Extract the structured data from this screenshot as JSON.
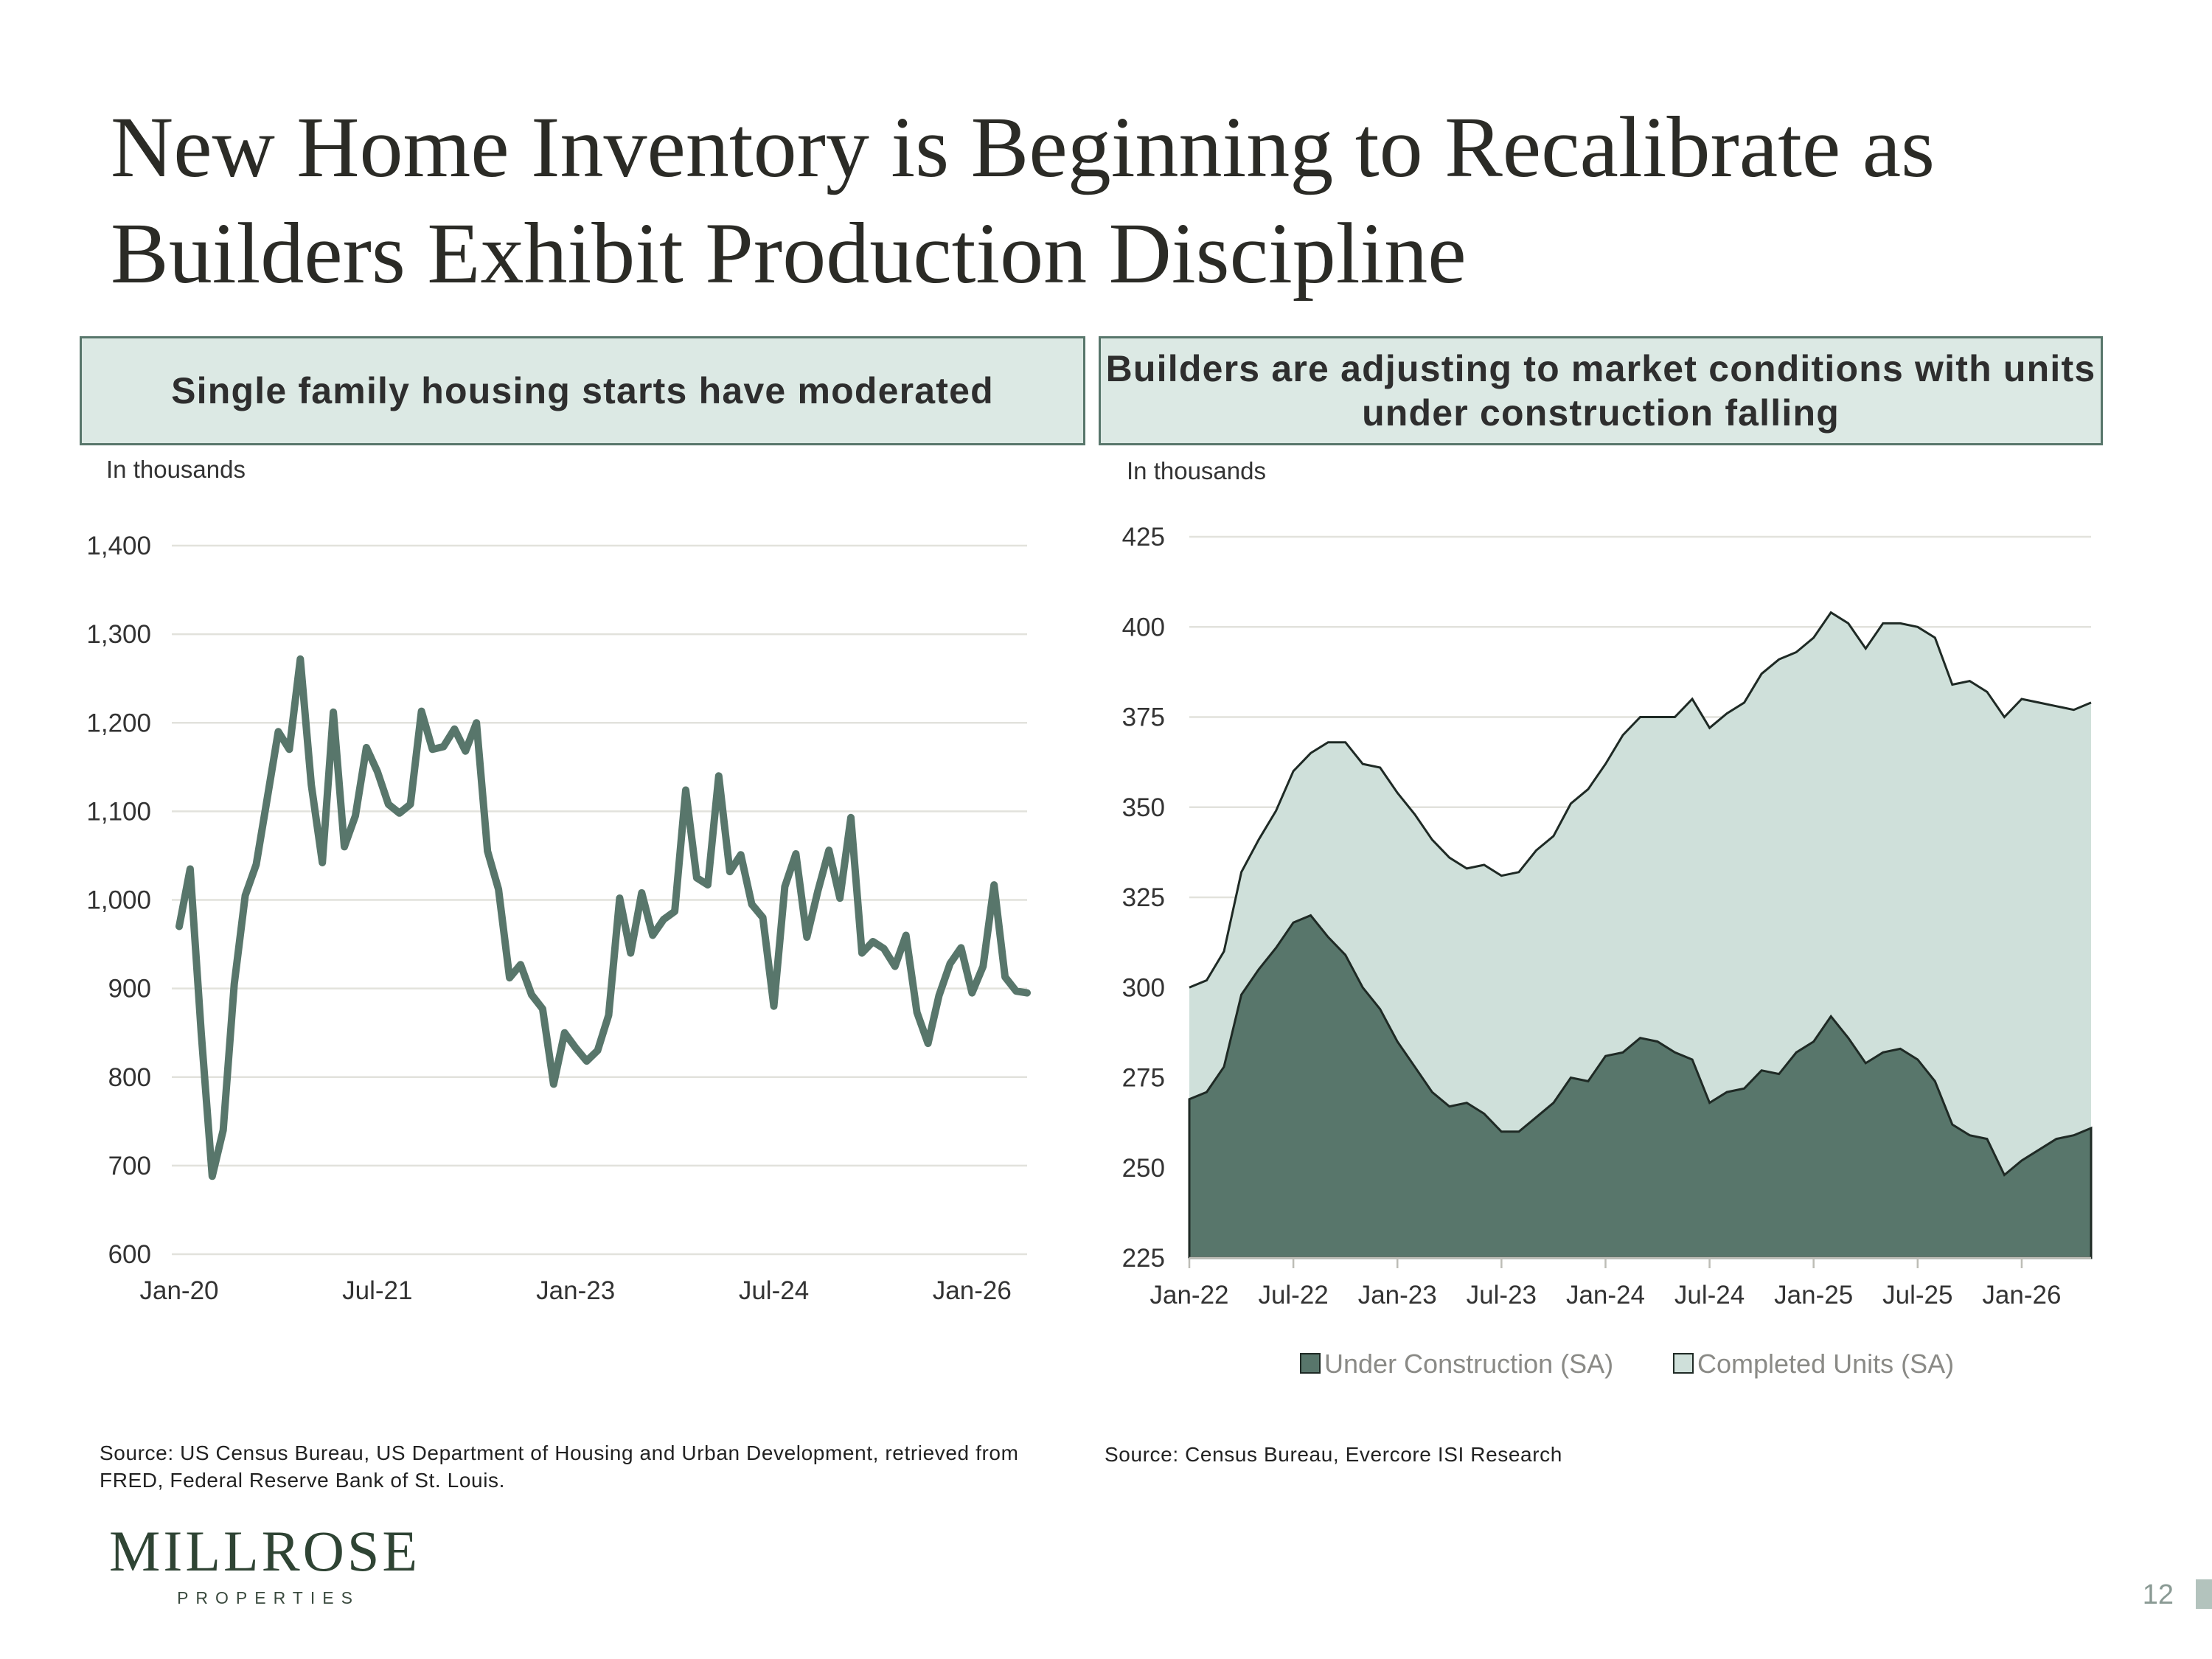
{
  "title": "New Home Inventory is Beginning to Recalibrate as Builders Exhibit Production Discipline",
  "colors": {
    "accent_dark": "#58766b",
    "accent_light": "#cfe0da",
    "header_fill": "#dce9e4",
    "gridline": "#e2e2dc"
  },
  "left_panel": {
    "header": "Single family housing starts have moderated",
    "unit_label": "In thousands",
    "source": "Source: US Census Bureau, US Department of Housing and Urban Development, retrieved from FRED, Federal Reserve Bank of St. Louis."
  },
  "right_panel": {
    "header": "Builders are adjusting to market conditions with units under construction falling",
    "unit_label": "In thousands",
    "source": "Source: Census Bureau, Evercore ISI Research"
  },
  "logo": {
    "name": "MILLROSE",
    "sub": "PROPERTIES"
  },
  "page_number": "12",
  "chart_data": [
    {
      "type": "line",
      "ylabel": "In thousands",
      "ylim": [
        600,
        1400
      ],
      "yticks": [
        "600",
        "700",
        "800",
        "900",
        "1,000",
        "1,100",
        "1,200",
        "1,300",
        "1,400"
      ],
      "xticks": [
        "Jan-20",
        "Jul-21",
        "Jan-23",
        "Jul-24",
        "Jan-26"
      ],
      "xtick_index": [
        0,
        18,
        36,
        54,
        72
      ],
      "grid": true,
      "series": [
        {
          "values": [
            970,
            1035,
            850,
            688,
            740,
            905,
            1005,
            1040,
            1115,
            1190,
            1170,
            1272,
            1130,
            1042,
            1212,
            1060,
            1095,
            1172,
            1145,
            1108,
            1098,
            1108,
            1213,
            1170,
            1173,
            1193,
            1168,
            1200,
            1055,
            1012,
            912,
            927,
            893,
            877,
            792,
            850,
            833,
            818,
            830,
            870,
            1002,
            940,
            1008,
            960,
            978,
            987,
            1124,
            1025,
            1017,
            1140,
            1032,
            1051,
            995,
            980,
            880,
            1015,
            1052,
            958,
            1010,
            1056,
            1002,
            1093,
            940,
            953,
            945,
            925,
            960,
            873,
            838,
            892,
            928,
            946,
            895,
            925,
            1017,
            913,
            897,
            895
          ]
        }
      ]
    },
    {
      "type": "area",
      "ylabel": "In thousands",
      "ylim": [
        225,
        425
      ],
      "yticks": [
        "225",
        "250",
        "275",
        "300",
        "325",
        "350",
        "375",
        "400",
        "425"
      ],
      "xticks": [
        "Jan-22",
        "Jul-22",
        "Jan-23",
        "Jul-23",
        "Jan-24",
        "Jul-24",
        "Jan-25",
        "Jul-25",
        "Jan-26"
      ],
      "xtick_index": [
        0,
        6,
        12,
        18,
        24,
        30,
        36,
        42,
        48
      ],
      "grid": true,
      "legend": "bottom",
      "stacked": true,
      "series": [
        {
          "name": "Under Construction (SA)",
          "color": "#58766b",
          "values": [
            269,
            271,
            278,
            298,
            305,
            311,
            318,
            320,
            314,
            309,
            300,
            294,
            285,
            278,
            271,
            267,
            268,
            265,
            260,
            260,
            264,
            268,
            275,
            274,
            281,
            282,
            286,
            285,
            282,
            280,
            268,
            271,
            272,
            277,
            276,
            282,
            285,
            292,
            286,
            279,
            282,
            283,
            280,
            274,
            262,
            259,
            258,
            248,
            252,
            255,
            258,
            259,
            261
          ]
        },
        {
          "name": "Completed Units (SA)",
          "color": "#cfe0da",
          "totals": [
            300,
            302,
            310,
            332,
            341,
            349,
            360,
            365,
            368,
            368,
            362,
            361,
            354,
            348,
            341,
            336,
            333,
            334,
            331,
            332,
            338,
            342,
            351,
            355,
            362,
            370,
            375,
            375,
            375,
            380,
            372,
            376,
            379,
            387,
            391,
            393,
            397,
            404,
            401,
            394,
            401,
            401,
            400,
            397,
            384,
            385,
            382,
            375,
            380,
            379,
            378,
            377,
            379
          ]
        }
      ]
    }
  ]
}
